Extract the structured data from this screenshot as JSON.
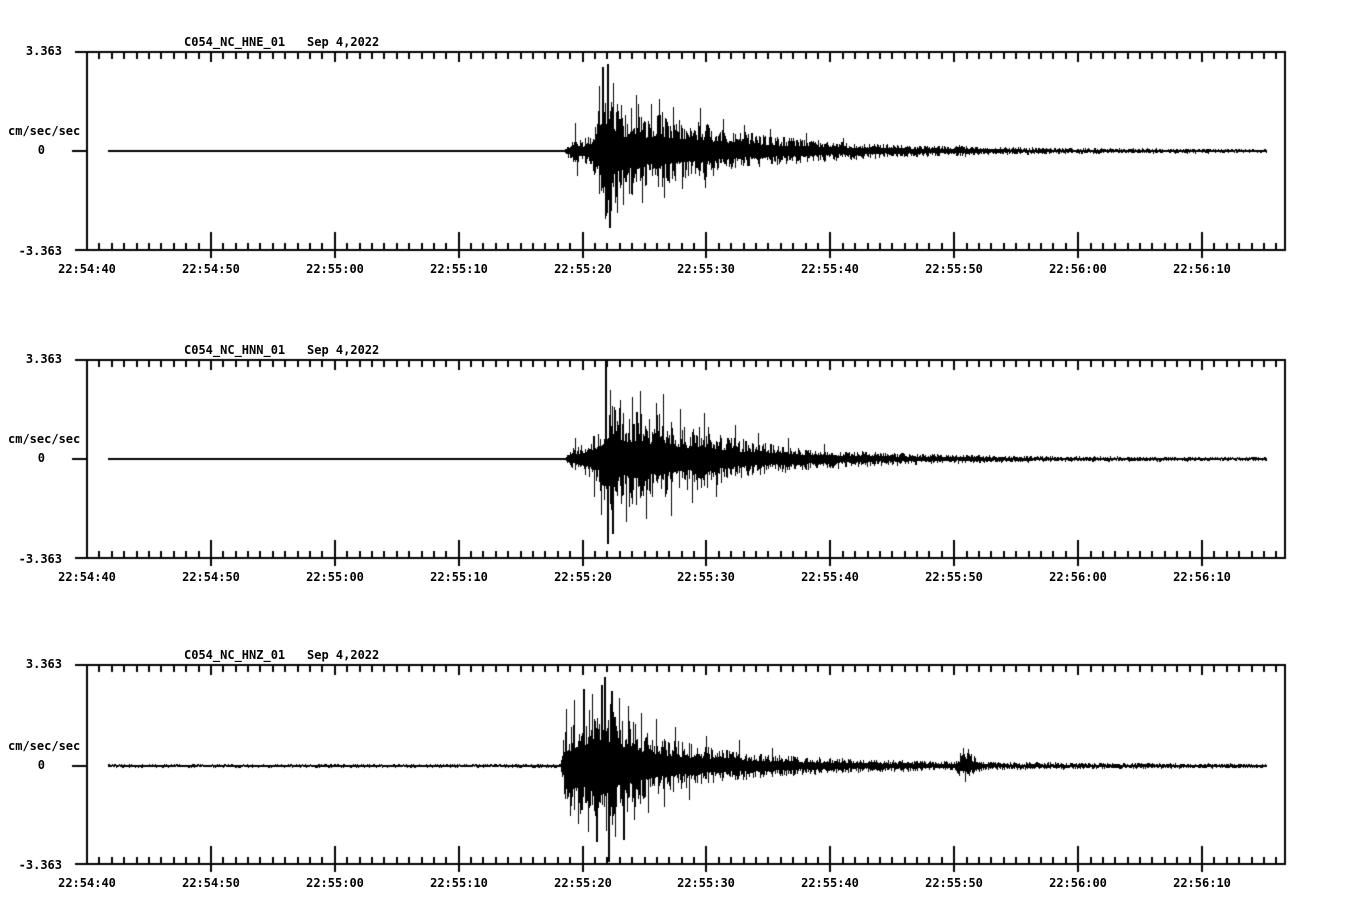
{
  "page": {
    "background_color": "#ffffff",
    "ink_color": "#000000"
  },
  "panels": [
    {
      "station": "C054_NC_HNE_01",
      "date": "Sep 4,2022",
      "y_max_label": "3.363",
      "y_zero_label": "0",
      "y_min_label": "-3.363",
      "y_units_label": "cm/sec/sec",
      "x_tick_labels": [
        "22:54:40",
        "22:54:50",
        "22:55:00",
        "22:55:10",
        "22:55:20",
        "22:55:30",
        "22:55:40",
        "22:55:50",
        "22:56:00",
        "22:56:10"
      ]
    },
    {
      "station": "C054_NC_HNN_01",
      "date": "Sep 4,2022",
      "y_max_label": "3.363",
      "y_zero_label": "0",
      "y_min_label": "-3.363",
      "y_units_label": "cm/sec/sec",
      "x_tick_labels": [
        "22:54:40",
        "22:54:50",
        "22:55:00",
        "22:55:10",
        "22:55:20",
        "22:55:30",
        "22:55:40",
        "22:55:50",
        "22:56:00",
        "22:56:10"
      ]
    },
    {
      "station": "C054_NC_HNZ_01",
      "date": "Sep 4,2022",
      "y_max_label": "3.363",
      "y_zero_label": "0",
      "y_min_label": "-3.363",
      "y_units_label": "cm/sec/sec",
      "x_tick_labels": [
        "22:54:40",
        "22:54:50",
        "22:55:00",
        "22:55:10",
        "22:55:20",
        "22:55:30",
        "22:55:40",
        "22:55:50",
        "22:56:00",
        "22:56:10"
      ]
    }
  ],
  "chart_data": [
    {
      "type": "line",
      "title": "C054_NC_HNE_01  Sep 4,2022",
      "ylabel": "cm/sec/sec",
      "ylim": [
        -3.363,
        3.363
      ],
      "x_tick_labels": [
        "22:54:40",
        "22:54:50",
        "22:55:00",
        "22:55:10",
        "22:55:20",
        "22:55:30",
        "22:55:40",
        "22:55:50",
        "22:56:00",
        "22:56:10"
      ],
      "x_tick_interval_sec": 10,
      "x_axis_span_sec": 96.7,
      "trace_window_sec": [
        1.7,
        95.2
      ],
      "event_onset_sec": 38.6,
      "peak_sec": 42.0,
      "noise_seed": 101,
      "envelope_points": [
        [
          1.7,
          0.022
        ],
        [
          38.5,
          0.026
        ],
        [
          38.9,
          0.3
        ],
        [
          39.5,
          0.5
        ],
        [
          40.1,
          0.42
        ],
        [
          40.7,
          0.6
        ],
        [
          41.2,
          1.3
        ],
        [
          41.7,
          2.6
        ],
        [
          42.2,
          2.7
        ],
        [
          42.6,
          2.0
        ],
        [
          43.4,
          1.35
        ],
        [
          44.3,
          1.7
        ],
        [
          45.2,
          1.15
        ],
        [
          46.1,
          1.45
        ],
        [
          47.2,
          1.15
        ],
        [
          48.3,
          0.95
        ],
        [
          49.6,
          1.05
        ],
        [
          51.0,
          0.8
        ],
        [
          52.5,
          0.68
        ],
        [
          54.5,
          0.56
        ],
        [
          56.5,
          0.47
        ],
        [
          59.0,
          0.38
        ],
        [
          61.5,
          0.31
        ],
        [
          64.0,
          0.26
        ],
        [
          67.0,
          0.21
        ],
        [
          69.8,
          0.17
        ],
        [
          70.6,
          0.21
        ],
        [
          71.5,
          0.16
        ],
        [
          74.0,
          0.14
        ],
        [
          78.0,
          0.115
        ],
        [
          83.0,
          0.095
        ],
        [
          88.0,
          0.085
        ],
        [
          95.2,
          0.075
        ]
      ],
      "spike_points": [
        [
          39.35,
          0.95
        ],
        [
          39.55,
          -0.85
        ],
        [
          41.35,
          2.2
        ],
        [
          41.55,
          2.85
        ],
        [
          41.8,
          -2.3
        ],
        [
          41.95,
          2.95
        ],
        [
          42.1,
          -2.62
        ],
        [
          42.45,
          2.3
        ],
        [
          42.8,
          -2.1
        ],
        [
          43.25,
          -1.85
        ],
        [
          44.35,
          1.9
        ],
        [
          44.8,
          -1.75
        ],
        [
          45.5,
          1.6
        ],
        [
          46.15,
          1.75
        ],
        [
          46.6,
          -1.6
        ],
        [
          47.3,
          1.5
        ],
        [
          48.0,
          -1.3
        ],
        [
          49.5,
          1.45
        ],
        [
          49.9,
          -1.25
        ],
        [
          51.3,
          1.1
        ],
        [
          53.0,
          0.9
        ],
        [
          55.1,
          0.75
        ],
        [
          58.0,
          0.6
        ],
        [
          61.0,
          0.45
        ]
      ]
    },
    {
      "type": "line",
      "title": "C054_NC_HNN_01  Sep 4,2022",
      "ylabel": "cm/sec/sec",
      "ylim": [
        -3.363,
        3.363
      ],
      "x_tick_labels": [
        "22:54:40",
        "22:54:50",
        "22:55:00",
        "22:55:10",
        "22:55:20",
        "22:55:30",
        "22:55:40",
        "22:55:50",
        "22:56:00",
        "22:56:10"
      ],
      "x_tick_interval_sec": 10,
      "x_axis_span_sec": 96.7,
      "trace_window_sec": [
        1.7,
        95.2
      ],
      "event_onset_sec": 38.6,
      "peak_sec": 41.9,
      "noise_seed": 202,
      "envelope_points": [
        [
          1.7,
          0.022
        ],
        [
          38.5,
          0.028
        ],
        [
          39.1,
          0.35
        ],
        [
          39.8,
          0.5
        ],
        [
          40.5,
          0.65
        ],
        [
          41.2,
          1.05
        ],
        [
          41.9,
          1.6
        ],
        [
          42.6,
          1.9
        ],
        [
          43.4,
          1.55
        ],
        [
          44.3,
          1.8
        ],
        [
          45.2,
          1.35
        ],
        [
          46.2,
          1.55
        ],
        [
          47.3,
          1.2
        ],
        [
          48.5,
          1.05
        ],
        [
          49.8,
          1.15
        ],
        [
          51.2,
          0.85
        ],
        [
          52.8,
          0.7
        ],
        [
          54.6,
          0.57
        ],
        [
          56.6,
          0.46
        ],
        [
          58.8,
          0.37
        ],
        [
          61.2,
          0.3
        ],
        [
          64.0,
          0.24
        ],
        [
          67.0,
          0.19
        ],
        [
          70.0,
          0.155
        ],
        [
          70.6,
          0.17
        ],
        [
          73.5,
          0.125
        ],
        [
          77.5,
          0.105
        ],
        [
          82.0,
          0.09
        ],
        [
          88.0,
          0.08
        ],
        [
          95.2,
          0.07
        ]
      ],
      "spike_points": [
        [
          39.4,
          0.7
        ],
        [
          40.9,
          -1.3
        ],
        [
          41.5,
          -1.9
        ],
        [
          41.85,
          3.37
        ],
        [
          42.0,
          -2.9
        ],
        [
          42.2,
          2.35
        ],
        [
          42.4,
          -2.55
        ],
        [
          43.0,
          2.0
        ],
        [
          43.5,
          -2.15
        ],
        [
          44.0,
          2.1
        ],
        [
          44.6,
          2.3
        ],
        [
          45.1,
          -2.05
        ],
        [
          45.9,
          1.9
        ],
        [
          46.5,
          2.2
        ],
        [
          47.1,
          -1.95
        ],
        [
          47.9,
          1.7
        ],
        [
          48.8,
          -1.5
        ],
        [
          49.8,
          1.55
        ],
        [
          50.8,
          -1.3
        ],
        [
          52.3,
          1.15
        ],
        [
          54.2,
          0.9
        ],
        [
          56.6,
          0.7
        ],
        [
          59.5,
          0.5
        ]
      ]
    },
    {
      "type": "line",
      "title": "C054_NC_HNZ_01  Sep 4,2022",
      "ylabel": "cm/sec/sec",
      "ylim": [
        -3.363,
        3.363
      ],
      "x_tick_labels": [
        "22:54:40",
        "22:54:50",
        "22:55:00",
        "22:55:10",
        "22:55:20",
        "22:55:30",
        "22:55:40",
        "22:55:50",
        "22:56:00",
        "22:56:10"
      ],
      "x_tick_interval_sec": 10,
      "x_axis_span_sec": 96.7,
      "trace_window_sec": [
        1.7,
        95.2
      ],
      "event_onset_sec": 38.4,
      "peak_sec": 42.0,
      "aftershock_burst_sec": 70.8,
      "noise_seed": 303,
      "envelope_points": [
        [
          1.7,
          0.065
        ],
        [
          38.2,
          0.07
        ],
        [
          38.5,
          1.15
        ],
        [
          39.2,
          1.5
        ],
        [
          40.0,
          1.8
        ],
        [
          40.9,
          2.1
        ],
        [
          41.6,
          2.35
        ],
        [
          42.4,
          2.1
        ],
        [
          43.2,
          1.75
        ],
        [
          44.2,
          1.45
        ],
        [
          45.3,
          1.2
        ],
        [
          46.5,
          1.0
        ],
        [
          47.8,
          0.85
        ],
        [
          49.3,
          0.7
        ],
        [
          51.0,
          0.58
        ],
        [
          53.0,
          0.48
        ],
        [
          55.0,
          0.4
        ],
        [
          57.5,
          0.33
        ],
        [
          60.0,
          0.28
        ],
        [
          62.5,
          0.24
        ],
        [
          65.5,
          0.2
        ],
        [
          68.5,
          0.175
        ],
        [
          70.1,
          0.165
        ],
        [
          70.45,
          0.42
        ],
        [
          71.1,
          0.45
        ],
        [
          71.7,
          0.32
        ],
        [
          72.2,
          0.16
        ],
        [
          74.5,
          0.14
        ],
        [
          77.5,
          0.125
        ],
        [
          81.0,
          0.11
        ],
        [
          85.0,
          0.1
        ],
        [
          90.0,
          0.09
        ],
        [
          95.2,
          0.085
        ]
      ],
      "spike_points": [
        [
          38.7,
          1.9
        ],
        [
          39.0,
          -1.7
        ],
        [
          39.3,
          2.2
        ],
        [
          39.65,
          -2.0
        ],
        [
          40.05,
          2.55
        ],
        [
          40.4,
          -2.25
        ],
        [
          40.75,
          2.4
        ],
        [
          41.1,
          -2.6
        ],
        [
          41.45,
          2.7
        ],
        [
          41.75,
          2.95
        ],
        [
          42.05,
          -3.3
        ],
        [
          42.3,
          2.5
        ],
        [
          42.6,
          -2.45
        ],
        [
          42.95,
          2.25
        ],
        [
          43.3,
          -2.55
        ],
        [
          43.7,
          2.0
        ],
        [
          44.15,
          -1.85
        ],
        [
          44.7,
          1.75
        ],
        [
          45.3,
          -1.6
        ],
        [
          45.9,
          1.55
        ],
        [
          46.6,
          -1.4
        ],
        [
          47.5,
          1.3
        ],
        [
          48.6,
          -1.15
        ],
        [
          50.0,
          1.0
        ],
        [
          52.6,
          0.85
        ],
        [
          55.3,
          0.6
        ],
        [
          70.7,
          0.6
        ],
        [
          70.9,
          -0.55
        ],
        [
          71.15,
          0.55
        ]
      ]
    }
  ]
}
